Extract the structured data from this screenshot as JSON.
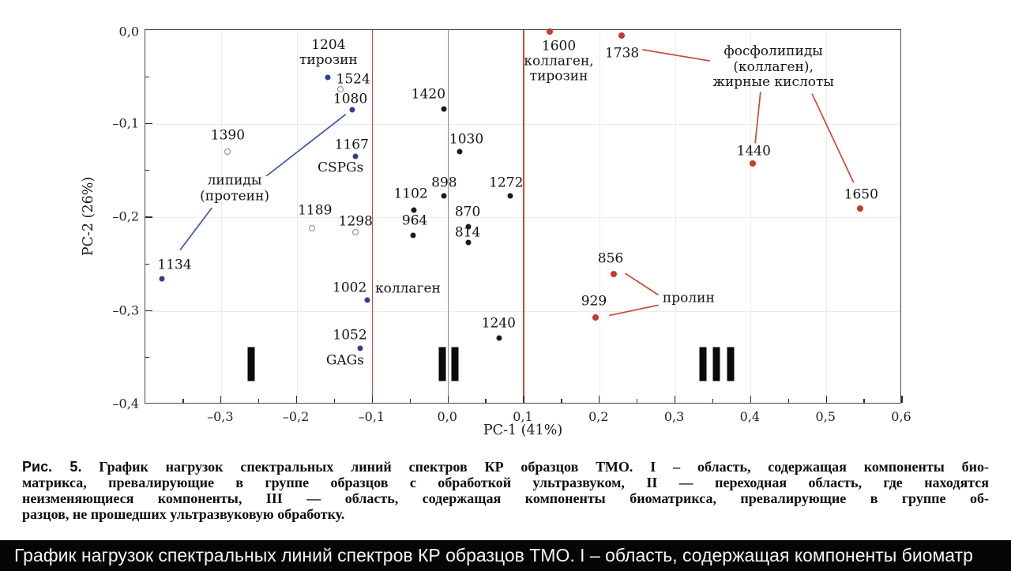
{
  "caption": {
    "tag": "Рис. 5.",
    "line1_rest": " График нагрузок спектральных линий спектров КР образцов ТМО. I – область, содержащая компоненты био-",
    "lines": [
      "матрикса, превалирующие в группе образцов с обработкой ультразвуком, II — переходная область, где находятся",
      "неизменяющиеся компоненты, III — область, содержащая компоненты биоматрикса, превалирующие в группе об-",
      "разцов, не прошедших ультразвуковую обработку."
    ]
  },
  "ocr_bar": {
    "text": "График нагрузок спектральных линий спектров КР образцов ТМО. I – область, содержащая компоненты биоматр"
  },
  "colors": {
    "blue_filled": "#2d3e8c",
    "blue_open": "#7086c2",
    "black": "#1b1b1b",
    "red": "#cd372b",
    "red_line": "#cd4a3a",
    "blue_line": "#3c56a5",
    "gray_line": "#8a8a8a"
  },
  "chart_data": {
    "type": "scatter",
    "title": "",
    "xlabel": "PC-1 (41%)",
    "ylabel": "PC-2 (26%)",
    "xlim": [
      -0.4,
      0.6
    ],
    "ylim": [
      -0.4,
      0.0
    ],
    "grid": {
      "x": [
        -0.3,
        -0.2,
        0.2,
        0.3,
        0.4,
        0.5
      ],
      "y": [
        -0.1,
        -0.2,
        -0.3
      ]
    },
    "x_ticks": {
      "values": [
        -0.3,
        -0.2,
        -0.1,
        0.0,
        0.1,
        0.2,
        0.3,
        0.4,
        0.5,
        0.6
      ],
      "labels": [
        "–0,3",
        "–0,2",
        "–0,1",
        "0,0",
        "0,1",
        "0,2",
        "0,3",
        "0,4",
        "0,5",
        "0,6"
      ],
      "minor": [
        -0.35,
        -0.25,
        -0.15,
        -0.05,
        0.05,
        0.15,
        0.25,
        0.35,
        0.45,
        0.55
      ]
    },
    "y_ticks": {
      "values": [
        0.0,
        -0.1,
        -0.2,
        -0.3,
        -0.4
      ],
      "labels": [
        "0,0",
        "–0,1",
        "–0,2",
        "–0,3",
        "–0,4"
      ],
      "majors_with_marks": [
        -0.1,
        -0.2,
        -0.3
      ],
      "minor": [
        -0.05,
        -0.15,
        -0.25,
        -0.35
      ]
    },
    "ref_lines": [
      {
        "x": -0.1,
        "color": "red",
        "width": 1.6
      },
      {
        "x": 0.1,
        "color": "red",
        "width": 1.6
      },
      {
        "x": 0.0,
        "color": "gray",
        "width": 1.1
      }
    ],
    "series": [
      {
        "name": "blue-filled",
        "marker": "filled",
        "size": 7,
        "color_key": "blue_filled",
        "points": [
          {
            "label": "1204",
            "lines": [
              "1204",
              "тирозин"
            ],
            "x": -0.159,
            "y": -0.051,
            "dx": 1,
            "dy": -31
          },
          {
            "label": "1080",
            "x": -0.127,
            "y": -0.085,
            "dx": -2,
            "dy": -13
          },
          {
            "label": "1167",
            "x": -0.122,
            "y": -0.135,
            "dx": -5,
            "dy": -14
          },
          {
            "label": "1134",
            "x": -0.378,
            "y": -0.266,
            "dx": 16,
            "dy": -17
          },
          {
            "label": "1002",
            "x": -0.107,
            "y": -0.289,
            "dx": -22,
            "dy": -15
          },
          {
            "label": "1052",
            "x": -0.116,
            "y": -0.34,
            "dx": -13,
            "dy": -16
          }
        ]
      },
      {
        "name": "blue-open",
        "marker": "open",
        "size": 8,
        "color_key": "blue_open",
        "points": [
          {
            "label": "1524",
            "x": -0.142,
            "y": -0.063,
            "dx": 16,
            "dy": -12
          },
          {
            "label": "1390",
            "x": -0.291,
            "y": -0.13,
            "dx": 0,
            "dy": -20
          },
          {
            "label": "1189",
            "x": -0.18,
            "y": -0.212,
            "dx": 4,
            "dy": -22
          },
          {
            "label": "1298",
            "x": -0.122,
            "y": -0.216,
            "dx": 0,
            "dy": -13
          }
        ]
      },
      {
        "name": "black-filled",
        "marker": "filled",
        "size": 7,
        "color_key": "black",
        "points": [
          {
            "label": "1420",
            "x": -0.005,
            "y": -0.084,
            "dx": -20,
            "dy": -18
          },
          {
            "label": "1030",
            "x": 0.015,
            "y": -0.13,
            "dx": 9,
            "dy": -15
          },
          {
            "label": "898",
            "x": -0.005,
            "y": -0.177,
            "dx": 0,
            "dy": -16
          },
          {
            "label": "1102",
            "x": -0.045,
            "y": -0.192,
            "dx": -4,
            "dy": -20
          },
          {
            "label": "964",
            "x": -0.046,
            "y": -0.219,
            "dx": 2,
            "dy": -18
          },
          {
            "label": "870",
            "x": 0.027,
            "y": -0.21,
            "dx": -1,
            "dy": -18
          },
          {
            "label": "814",
            "x": 0.027,
            "y": -0.227,
            "dx": -1,
            "dy": -12
          },
          {
            "label": "1272",
            "x": 0.082,
            "y": -0.177,
            "dx": -5,
            "dy": -16
          },
          {
            "label": "1240",
            "x": 0.068,
            "y": -0.329,
            "dx": -1,
            "dy": -18
          }
        ]
      },
      {
        "name": "red-filled",
        "marker": "filled",
        "size": 8,
        "color_key": "red",
        "points": [
          {
            "label": "1600",
            "lines": [
              "1600",
              "коллаген,",
              "тирозин"
            ],
            "x": 0.134,
            "y": -0.002,
            "dx": 12,
            "dy": 38
          },
          {
            "label": "1738",
            "x": 0.229,
            "y": -0.006,
            "dx": 1,
            "dy": 23
          },
          {
            "label": "1440",
            "x": 0.403,
            "y": -0.143,
            "dx": 1,
            "dy": -15
          },
          {
            "label": "1650",
            "x": 0.545,
            "y": -0.191,
            "dx": 1,
            "dy": -17
          },
          {
            "label": "856",
            "x": 0.219,
            "y": -0.261,
            "dx": -4,
            "dy": -19
          },
          {
            "label": "929",
            "x": 0.195,
            "y": -0.307,
            "dx": -2,
            "dy": -20
          }
        ]
      }
    ],
    "annotations": [
      {
        "name": "lipids-protein",
        "lines": [
          "липиды",
          "(протеин)"
        ],
        "x": -0.282,
        "y": -0.17
      },
      {
        "name": "cspgs",
        "lines": [
          "CSPGs"
        ],
        "x": -0.142,
        "y": -0.148
      },
      {
        "name": "collagen",
        "lines": [
          "коллаген"
        ],
        "x": -0.053,
        "y": -0.277
      },
      {
        "name": "gags",
        "lines": [
          "GAGs"
        ],
        "x": -0.136,
        "y": -0.354
      },
      {
        "name": "phospholipids",
        "lines": [
          "фосфолипиды",
          "(коллаген),",
          "жирные кислоты"
        ],
        "x": 0.43,
        "y": -0.04
      },
      {
        "name": "proline",
        "lines": [
          "пролин"
        ],
        "x": 0.318,
        "y": -0.287
      }
    ],
    "leader_lines": [
      {
        "color": "blue",
        "x1": -0.24,
        "y1": -0.156,
        "x2": -0.135,
        "y2": -0.09
      },
      {
        "color": "blue",
        "x1": -0.312,
        "y1": -0.19,
        "x2": -0.354,
        "y2": -0.235
      },
      {
        "color": "red",
        "x1": 0.257,
        "y1": -0.021,
        "x2": 0.346,
        "y2": -0.033
      },
      {
        "color": "red",
        "x1": 0.413,
        "y1": -0.066,
        "x2": 0.406,
        "y2": -0.121
      },
      {
        "color": "red",
        "x1": 0.481,
        "y1": -0.068,
        "x2": 0.536,
        "y2": -0.163
      },
      {
        "color": "red",
        "x1": 0.234,
        "y1": -0.26,
        "x2": 0.278,
        "y2": -0.283
      },
      {
        "color": "red",
        "x1": 0.213,
        "y1": -0.305,
        "x2": 0.278,
        "y2": -0.294
      }
    ],
    "region_markers": [
      {
        "label": "I",
        "bar_x": [
          -0.26
        ],
        "y": -0.357
      },
      {
        "label": "II",
        "bar_x": [
          -0.008,
          0.009
        ],
        "y": -0.357
      },
      {
        "label": "III",
        "bar_x": [
          0.337,
          0.355,
          0.373
        ],
        "y": -0.357
      }
    ],
    "legend": null
  }
}
